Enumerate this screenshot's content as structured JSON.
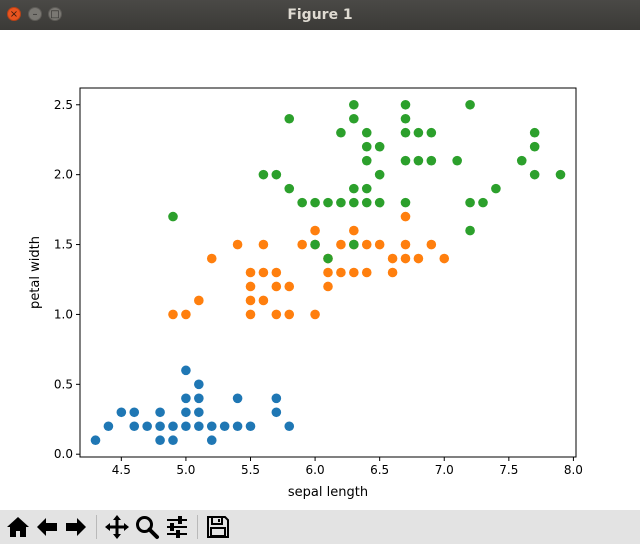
{
  "window": {
    "title": "Figure 1"
  },
  "toolbar": {
    "buttons": [
      "home-icon",
      "back-arrow-icon",
      "forward-arrow-icon",
      "pan-icon",
      "zoom-icon",
      "configure-subplots-icon",
      "save-icon"
    ]
  },
  "chart_data": {
    "type": "scatter",
    "xlabel": "sepal length",
    "ylabel": "petal width",
    "xlim": [
      4.18,
      8.02
    ],
    "ylim": [
      -0.02,
      2.62
    ],
    "xticks": [
      4.5,
      5.0,
      5.5,
      6.0,
      6.5,
      7.0,
      7.5,
      8.0
    ],
    "xtick_labels": [
      "4.5",
      "5.0",
      "5.5",
      "6.0",
      "6.5",
      "7.0",
      "7.5",
      "8.0"
    ],
    "yticks": [
      0.0,
      0.5,
      1.0,
      1.5,
      2.0,
      2.5
    ],
    "ytick_labels": [
      "0.0",
      "0.5",
      "1.0",
      "1.5",
      "2.0",
      "2.5"
    ],
    "grid": false,
    "legend": false,
    "series": [
      {
        "color": "#1f77b4",
        "points": [
          [
            4.3,
            0.1
          ],
          [
            4.4,
            0.2
          ],
          [
            4.5,
            0.3
          ],
          [
            4.6,
            0.3
          ],
          [
            4.6,
            0.2
          ],
          [
            4.7,
            0.2
          ],
          [
            4.8,
            0.3
          ],
          [
            4.8,
            0.2
          ],
          [
            4.8,
            0.1
          ],
          [
            4.9,
            0.2
          ],
          [
            4.9,
            0.1
          ],
          [
            5.0,
            0.6
          ],
          [
            5.0,
            0.4
          ],
          [
            5.0,
            0.3
          ],
          [
            5.0,
            0.2
          ],
          [
            5.1,
            0.5
          ],
          [
            5.1,
            0.4
          ],
          [
            5.1,
            0.3
          ],
          [
            5.1,
            0.2
          ],
          [
            5.2,
            0.2
          ],
          [
            5.2,
            0.1
          ],
          [
            5.3,
            0.2
          ],
          [
            5.4,
            0.4
          ],
          [
            5.4,
            0.2
          ],
          [
            5.5,
            0.2
          ],
          [
            5.7,
            0.4
          ],
          [
            5.7,
            0.3
          ],
          [
            5.8,
            0.2
          ]
        ]
      },
      {
        "color": "#ff7f0e",
        "points": [
          [
            4.9,
            1.0
          ],
          [
            5.0,
            1.0
          ],
          [
            5.1,
            1.1
          ],
          [
            5.2,
            1.4
          ],
          [
            5.4,
            1.5
          ],
          [
            5.5,
            1.3
          ],
          [
            5.5,
            1.2
          ],
          [
            5.5,
            1.1
          ],
          [
            5.5,
            1.0
          ],
          [
            5.6,
            1.5
          ],
          [
            5.6,
            1.3
          ],
          [
            5.6,
            1.1
          ],
          [
            5.7,
            1.3
          ],
          [
            5.7,
            1.2
          ],
          [
            5.7,
            1.0
          ],
          [
            5.8,
            1.2
          ],
          [
            5.8,
            1.0
          ],
          [
            5.9,
            1.5
          ],
          [
            6.0,
            1.6
          ],
          [
            6.0,
            1.5
          ],
          [
            6.0,
            1.0
          ],
          [
            6.1,
            1.3
          ],
          [
            6.1,
            1.2
          ],
          [
            6.1,
            1.4
          ],
          [
            6.2,
            1.5
          ],
          [
            6.2,
            1.3
          ],
          [
            6.3,
            1.6
          ],
          [
            6.3,
            1.5
          ],
          [
            6.3,
            1.3
          ],
          [
            6.4,
            1.5
          ],
          [
            6.4,
            1.3
          ],
          [
            6.5,
            1.5
          ],
          [
            6.6,
            1.4
          ],
          [
            6.6,
            1.3
          ],
          [
            6.7,
            1.7
          ],
          [
            6.7,
            1.5
          ],
          [
            6.7,
            1.4
          ],
          [
            6.8,
            1.4
          ],
          [
            6.9,
            1.5
          ],
          [
            7.0,
            1.4
          ]
        ]
      },
      {
        "color": "#2ca02c",
        "points": [
          [
            4.9,
            1.7
          ],
          [
            5.6,
            2.0
          ],
          [
            5.7,
            2.0
          ],
          [
            5.8,
            2.4
          ],
          [
            5.8,
            1.9
          ],
          [
            5.9,
            1.8
          ],
          [
            6.0,
            1.8
          ],
          [
            6.0,
            1.5
          ],
          [
            6.1,
            1.8
          ],
          [
            6.1,
            1.4
          ],
          [
            6.2,
            2.3
          ],
          [
            6.2,
            1.8
          ],
          [
            6.3,
            2.5
          ],
          [
            6.3,
            2.4
          ],
          [
            6.3,
            1.9
          ],
          [
            6.3,
            1.8
          ],
          [
            6.3,
            1.5
          ],
          [
            6.4,
            2.3
          ],
          [
            6.4,
            2.2
          ],
          [
            6.4,
            2.1
          ],
          [
            6.4,
            1.9
          ],
          [
            6.4,
            1.8
          ],
          [
            6.5,
            2.2
          ],
          [
            6.5,
            2.0
          ],
          [
            6.5,
            1.8
          ],
          [
            6.7,
            2.5
          ],
          [
            6.7,
            2.4
          ],
          [
            6.7,
            2.3
          ],
          [
            6.7,
            2.1
          ],
          [
            6.7,
            1.8
          ],
          [
            6.8,
            2.3
          ],
          [
            6.8,
            2.1
          ],
          [
            6.9,
            2.3
          ],
          [
            6.9,
            2.1
          ],
          [
            7.1,
            2.1
          ],
          [
            7.2,
            2.5
          ],
          [
            7.2,
            1.8
          ],
          [
            7.2,
            1.6
          ],
          [
            7.3,
            1.8
          ],
          [
            7.4,
            1.9
          ],
          [
            7.6,
            2.1
          ],
          [
            7.7,
            2.3
          ],
          [
            7.7,
            2.2
          ],
          [
            7.7,
            2.0
          ],
          [
            7.9,
            2.0
          ]
        ]
      }
    ]
  }
}
